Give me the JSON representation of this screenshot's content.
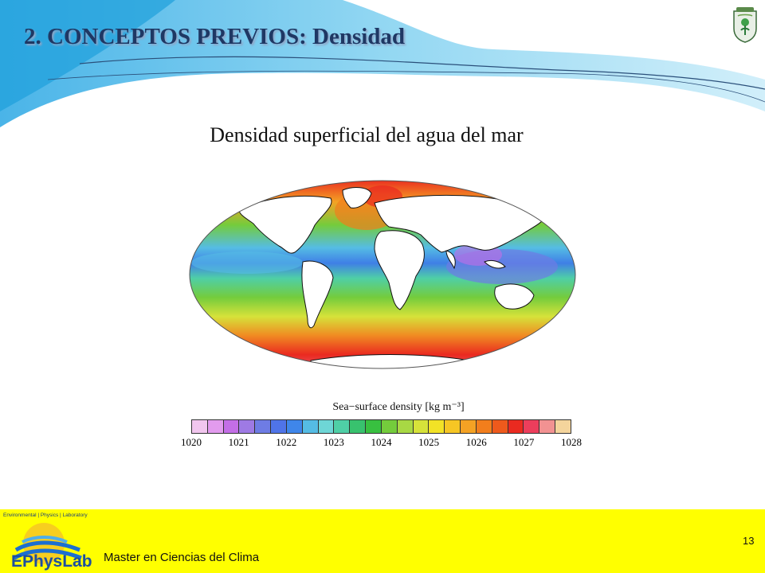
{
  "slide": {
    "title": "2. CONCEPTOS PREVIOS: Densidad",
    "subtitle": "Densidad superficial del agua del mar",
    "slide_number": "13",
    "footer_text": "Master en Ciencias del Clima"
  },
  "logo": {
    "top_text": "Environmental | Physics | Laboratory",
    "name": "EPhysLab"
  },
  "figure": {
    "colorbar_title": "Sea−surface density [kg m⁻³]",
    "colorbar_ticks": [
      "1020",
      "1021",
      "1022",
      "1023",
      "1024",
      "1025",
      "1026",
      "1027",
      "1028"
    ],
    "colorbar_colors": [
      "#f1c6ee",
      "#e29bee",
      "#c36ee6",
      "#9e7ae4",
      "#6e7ce4",
      "#4f74e8",
      "#3f86ea",
      "#55bce4",
      "#6ed6d6",
      "#4fcfa6",
      "#38c26e",
      "#38c040",
      "#74cc3c",
      "#a8d844",
      "#d6e23a",
      "#f2e226",
      "#f6c624",
      "#f4a224",
      "#f27e1c",
      "#ee5a1c",
      "#ea2a20",
      "#ec3e5c",
      "#f29292",
      "#f4d49c"
    ],
    "colors": {
      "ocean_tropical": "#3f7fe6",
      "ocean_mid": "#6ccc3c",
      "ocean_south": "#f08a22",
      "ocean_polar": "#ea2a20"
    }
  },
  "colors": {
    "title": "#1f3864",
    "footer_band": "#ffff00",
    "swoosh": "#4fb8e8"
  }
}
